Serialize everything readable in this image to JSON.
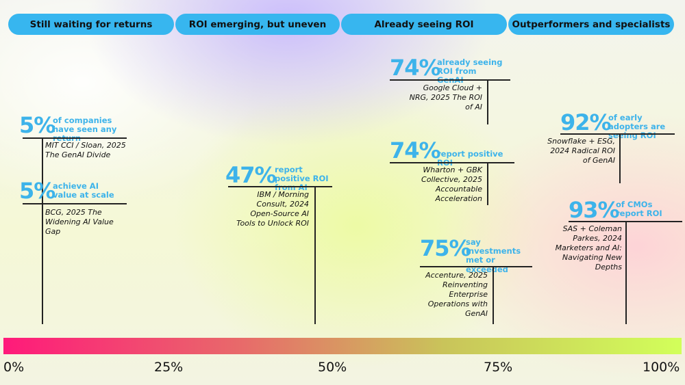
{
  "chart_data": {
    "type": "scatter",
    "axis": {
      "min": 0,
      "max": 100,
      "ticks": [
        {
          "value": 0,
          "label": "0%"
        },
        {
          "value": 25,
          "label": "25%"
        },
        {
          "value": 50,
          "label": "50%"
        },
        {
          "value": 75,
          "label": "75%"
        },
        {
          "value": 100,
          "label": "100%"
        }
      ]
    },
    "categories": [
      "Still waiting for returns",
      "ROI emerging, but uneven",
      "Already seeing ROI",
      "Outperformers and specialists"
    ],
    "points": [
      {
        "value": 5,
        "pct_label": "5%",
        "desc": "of companies have seen any return",
        "source": "MIT CCI / Sloan, 2025 The GenAI Divide"
      },
      {
        "value": 5,
        "pct_label": "5%",
        "desc": "achieve AI value at scale",
        "source": "BCG, 2025 The Widening AI Value Gap"
      },
      {
        "value": 47,
        "pct_label": "47%",
        "desc": "report positive ROI from AI",
        "source": "IBM / Morning Consult, 2024 Open-Source AI Tools to Unlock ROI"
      },
      {
        "value": 74,
        "pct_label": "74%",
        "desc": "already seeing ROI from GenAI",
        "source": "Google Cloud + NRG, 2025 The ROI of AI"
      },
      {
        "value": 74,
        "pct_label": "74%",
        "desc": "report positive ROI",
        "source": "Wharton + GBK Collective, 2025 Accountable Acceleration"
      },
      {
        "value": 75,
        "pct_label": "75%",
        "desc": "say investments met or exceeded",
        "source": "Accenture, 2025 Reinventing Enterprise Operations with GenAI"
      },
      {
        "value": 92,
        "pct_label": "92%",
        "desc": "of early adopters are seeing ROI",
        "source": "Snowflake + ESG, 2024 Radical ROI of GenAI"
      },
      {
        "value": 93,
        "pct_label": "93%",
        "desc": "of CMOs report ROI",
        "source": "SAS + Coleman Parkes, 2024 Marketers and AI: Navigating New Depths"
      }
    ],
    "colors": {
      "accent": "#3db3ea",
      "pill": "#37b6ef",
      "scale_start": "#ff1a7a",
      "scale_end": "#d2ff5a"
    }
  }
}
